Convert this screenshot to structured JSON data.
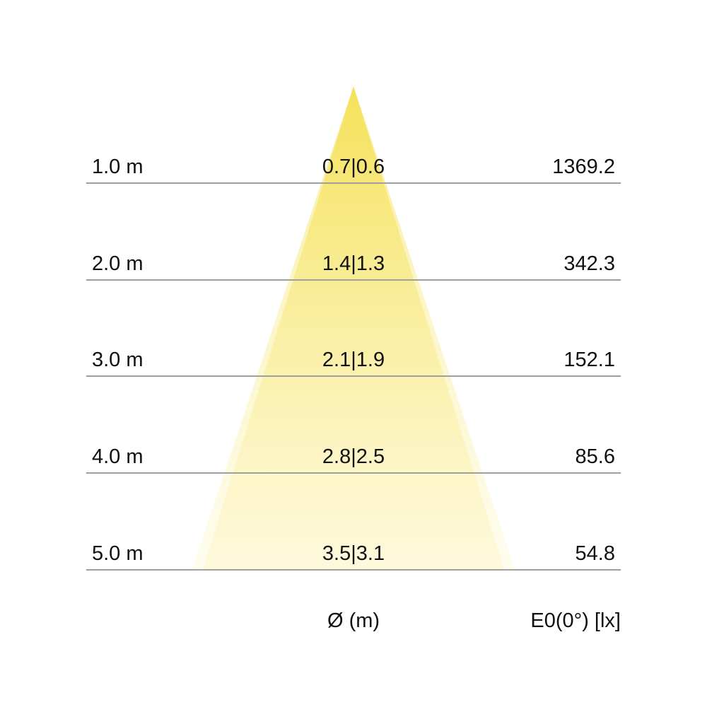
{
  "colors": {
    "cone_top": "#f3dc3c",
    "cone_bottom": "#fdf8d8",
    "grid_line": "#a0a0a0"
  },
  "rows": [
    {
      "distance": "1.0 m",
      "diameter": "0.7|0.6",
      "illuminance": "1369.2"
    },
    {
      "distance": "2.0 m",
      "diameter": "1.4|1.3",
      "illuminance": "342.3"
    },
    {
      "distance": "3.0 m",
      "diameter": "2.1|1.9",
      "illuminance": "152.1"
    },
    {
      "distance": "4.0 m",
      "diameter": "2.8|2.5",
      "illuminance": "85.6"
    },
    {
      "distance": "5.0 m",
      "diameter": "3.5|3.1",
      "illuminance": "54.8"
    }
  ],
  "footer": {
    "diameter_label": "Ø (m)",
    "illuminance_label": "E0(0°) [lx]"
  }
}
